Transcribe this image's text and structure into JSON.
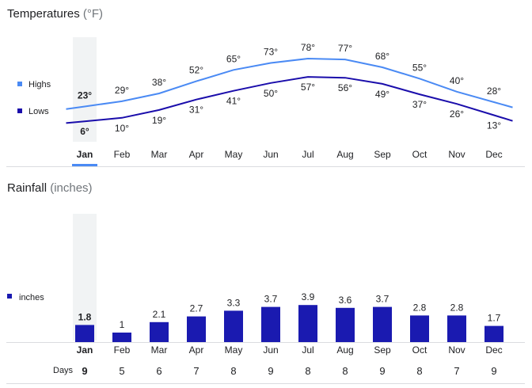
{
  "temperatures": {
    "title": "Temperatures",
    "unit": "(°F)",
    "legend": {
      "highs": "Highs",
      "lows": "Lows"
    },
    "colors": {
      "highs": "#4a8af4",
      "lows": "#1a0dab"
    }
  },
  "rainfall": {
    "title": "Rainfall",
    "unit": "(inches)",
    "legend": "inches",
    "days_label": "Days",
    "colors": {
      "bars": "#1a1ab0"
    }
  },
  "selected_month": "Jan",
  "chart_data": [
    {
      "type": "line",
      "title": "Temperatures (°F)",
      "categories": [
        "Jan",
        "Feb",
        "Mar",
        "Apr",
        "May",
        "Jun",
        "Jul",
        "Aug",
        "Sep",
        "Oct",
        "Nov",
        "Dec"
      ],
      "series": [
        {
          "name": "Highs",
          "values": [
            23,
            29,
            38,
            52,
            65,
            73,
            78,
            77,
            68,
            55,
            40,
            28
          ]
        },
        {
          "name": "Lows",
          "values": [
            6,
            10,
            19,
            31,
            41,
            50,
            57,
            56,
            49,
            37,
            26,
            13
          ]
        }
      ],
      "value_suffix": "°",
      "legend": "left"
    },
    {
      "type": "bar",
      "title": "Rainfall (inches)",
      "categories": [
        "Jan",
        "Feb",
        "Mar",
        "Apr",
        "May",
        "Jun",
        "Jul",
        "Aug",
        "Sep",
        "Oct",
        "Nov",
        "Dec"
      ],
      "series": [
        {
          "name": "inches",
          "values": [
            1.8,
            1,
            2.1,
            2.7,
            3.3,
            3.7,
            3.9,
            3.6,
            3.7,
            2.8,
            2.8,
            1.7
          ]
        }
      ],
      "days": [
        9,
        5,
        6,
        7,
        8,
        9,
        8,
        8,
        9,
        8,
        7,
        9
      ],
      "legend": "left"
    }
  ]
}
